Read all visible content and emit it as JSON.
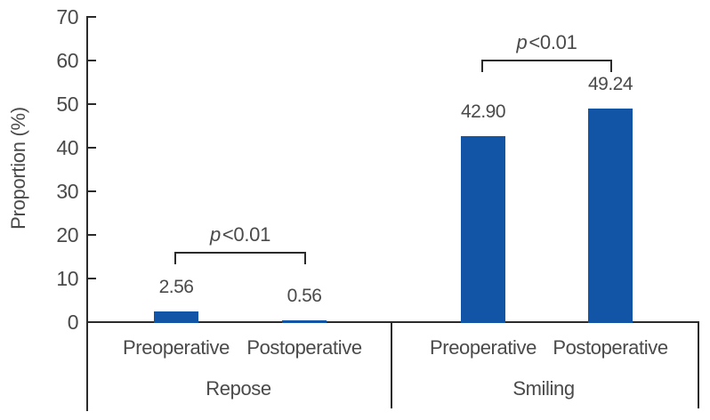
{
  "chart_data": {
    "type": "bar",
    "title": "",
    "xlabel": "",
    "ylabel": "Proportion (%)",
    "ylim": [
      0,
      70
    ],
    "yticks": [
      0,
      10,
      20,
      30,
      40,
      50,
      60,
      70
    ],
    "grid": false,
    "legend": "none",
    "bar_color": "#1254a5",
    "axis_color": "#2b2b2b",
    "groups": [
      {
        "label": "Repose",
        "categories": [
          "Preoperative",
          "Postoperative"
        ],
        "values": [
          2.56,
          0.56
        ],
        "value_labels": [
          "2.56",
          "0.56"
        ],
        "significance": "p<0.01"
      },
      {
        "label": "Smiling",
        "categories": [
          "Preoperative",
          "Postoperative"
        ],
        "values": [
          42.9,
          49.24
        ],
        "value_labels": [
          "42.90",
          "49.24"
        ],
        "significance": "p<0.01"
      }
    ]
  }
}
